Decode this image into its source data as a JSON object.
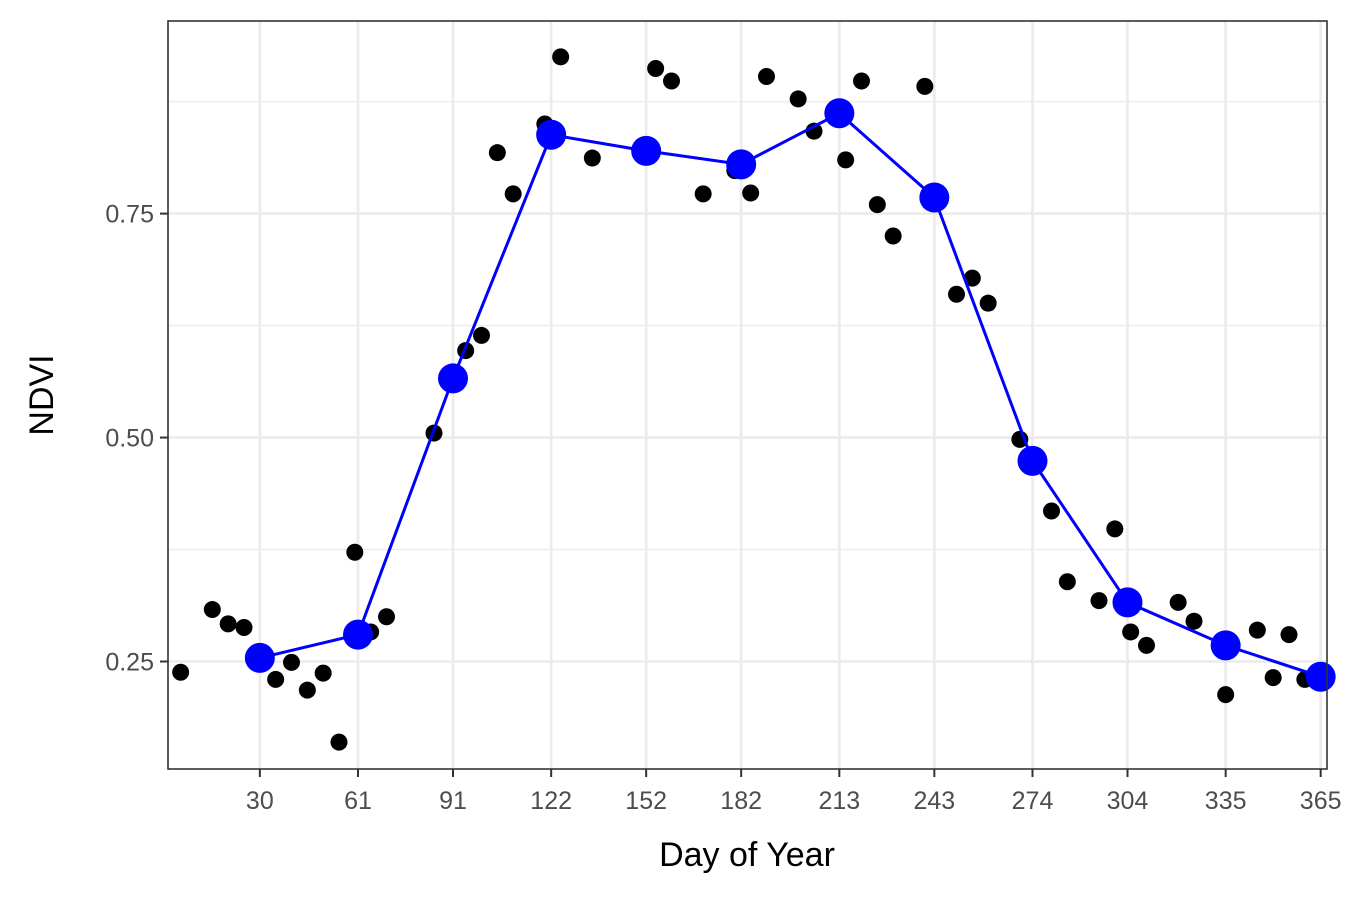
{
  "chart_data": {
    "type": "scatter",
    "title": "",
    "xlabel": "Day of Year",
    "ylabel": "NDVI",
    "xlim": [
      1,
      367
    ],
    "ylim": [
      0.13,
      0.965
    ],
    "x_ticks": [
      30,
      61,
      91,
      122,
      152,
      182,
      213,
      243,
      274,
      304,
      335,
      365
    ],
    "y_ticks": [
      0.25,
      0.5,
      0.75
    ],
    "y_minor": [
      0.375,
      0.625,
      0.875
    ],
    "grid": true,
    "legend": "none",
    "series": [
      {
        "kind": "points",
        "color": "#000000",
        "points": [
          [
            5,
            0.238
          ],
          [
            15,
            0.308
          ],
          [
            20,
            0.292
          ],
          [
            25,
            0.288
          ],
          [
            35,
            0.23
          ],
          [
            40,
            0.249
          ],
          [
            45,
            0.218
          ],
          [
            50,
            0.237
          ],
          [
            55,
            0.16
          ],
          [
            60,
            0.372
          ],
          [
            65,
            0.283
          ],
          [
            70,
            0.3
          ],
          [
            85,
            0.505
          ],
          [
            95,
            0.597
          ],
          [
            100,
            0.614
          ],
          [
            105,
            0.818
          ],
          [
            110,
            0.772
          ],
          [
            120,
            0.85
          ],
          [
            125,
            0.925
          ],
          [
            135,
            0.812
          ],
          [
            155,
            0.912
          ],
          [
            160,
            0.898
          ],
          [
            170,
            0.772
          ],
          [
            180,
            0.798
          ],
          [
            185,
            0.773
          ],
          [
            190,
            0.903
          ],
          [
            200,
            0.878
          ],
          [
            205,
            0.842
          ],
          [
            215,
            0.81
          ],
          [
            220,
            0.898
          ],
          [
            225,
            0.76
          ],
          [
            230,
            0.725
          ],
          [
            240,
            0.892
          ],
          [
            250,
            0.66
          ],
          [
            255,
            0.678
          ],
          [
            260,
            0.65
          ],
          [
            270,
            0.498
          ],
          [
            280,
            0.418
          ],
          [
            285,
            0.339
          ],
          [
            295,
            0.318
          ],
          [
            300,
            0.398
          ],
          [
            305,
            0.283
          ],
          [
            310,
            0.268
          ],
          [
            320,
            0.316
          ],
          [
            325,
            0.295
          ],
          [
            335,
            0.213
          ],
          [
            345,
            0.285
          ],
          [
            350,
            0.232
          ],
          [
            355,
            0.28
          ],
          [
            360,
            0.23
          ]
        ]
      },
      {
        "kind": "line-points",
        "color": "#0000ff",
        "points": [
          [
            30,
            0.254
          ],
          [
            61,
            0.28
          ],
          [
            91,
            0.566
          ],
          [
            122,
            0.838
          ],
          [
            152,
            0.82
          ],
          [
            182,
            0.805
          ],
          [
            213,
            0.862
          ],
          [
            243,
            0.768
          ],
          [
            274,
            0.474
          ],
          [
            304,
            0.316
          ],
          [
            335,
            0.268
          ],
          [
            365,
            0.233
          ]
        ]
      }
    ]
  }
}
